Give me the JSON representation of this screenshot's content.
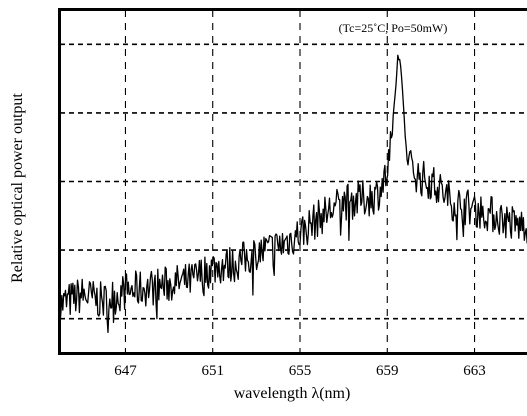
{
  "chart_data": {
    "type": "line",
    "title": "",
    "xlabel": "wavelength  λ(nm)",
    "ylabel": "Relative optical power output",
    "annotation": "(Tc=25˚C,  Po=50mW)",
    "xlim": [
      644.0,
      666.0
    ],
    "ylim": [
      0,
      1
    ],
    "x_ticks": [
      647,
      651,
      655,
      659,
      663
    ],
    "x_tick_labels": [
      "647",
      "651",
      "655",
      "659",
      "663"
    ],
    "y_grid": [
      0.1,
      0.3,
      0.5,
      0.7,
      0.9
    ],
    "grid": true,
    "grid_style": "dashed",
    "line_color": "#000000",
    "series": [
      {
        "x": [
          644.0,
          645.0,
          646.0,
          647.0,
          648.0,
          649.0,
          650.0,
          651.0,
          652.0,
          653.0,
          654.0,
          655.0,
          656.0,
          657.0,
          658.0,
          658.5,
          659.0,
          659.2,
          659.4,
          659.5,
          659.6,
          659.8,
          660.0,
          660.5,
          661.0,
          662.0,
          663.0,
          664.0,
          665.0,
          666.0
        ],
        "y": [
          0.14,
          0.17,
          0.15,
          0.18,
          0.19,
          0.2,
          0.21,
          0.25,
          0.26,
          0.29,
          0.31,
          0.35,
          0.4,
          0.44,
          0.45,
          0.46,
          0.52,
          0.62,
          0.78,
          0.87,
          0.85,
          0.66,
          0.55,
          0.51,
          0.5,
          0.44,
          0.42,
          0.4,
          0.37,
          0.38
        ]
      }
    ]
  }
}
